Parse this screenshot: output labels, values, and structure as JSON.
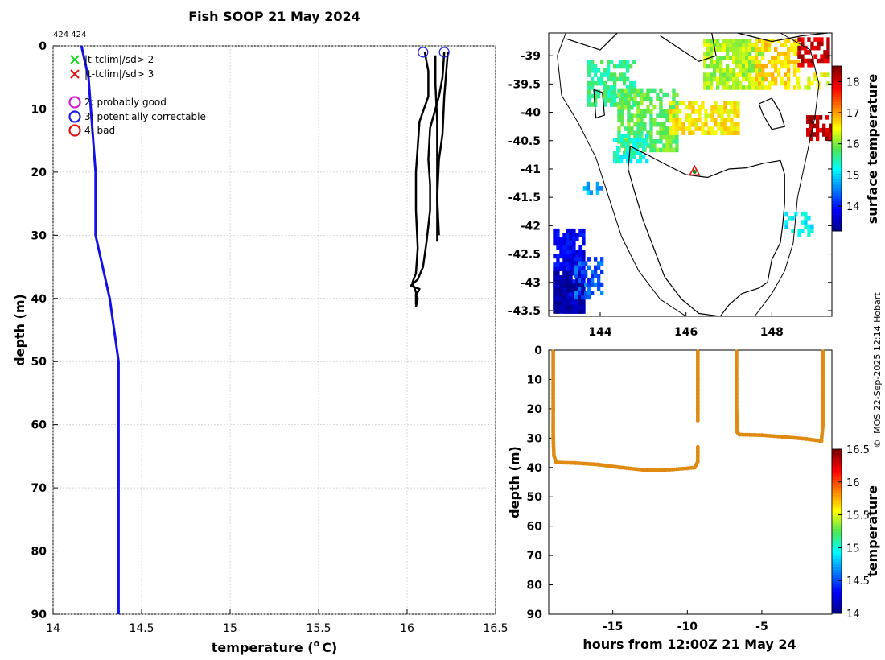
{
  "colors": {
    "climatology": "#1212e6",
    "profile": "#000000",
    "timeseries": "#e08a12",
    "qc_good_x": "#19d619",
    "qc_bad_x": "#e01212",
    "qc2": "#d21bd2",
    "qc3": "#1c1ce0",
    "qc4": "#e01212",
    "land": "#ffffff"
  },
  "side_label": "© IMOS 22-Sep-2025 12:14 Hobart",
  "chart_data": [
    {
      "id": "profile",
      "type": "line",
      "title": "Fish SOOP 21 May 2024",
      "id_label": "424 424",
      "xlabel": "temperature (",
      "xlabel_unit_sup": "o",
      "xlabel_unit": "C)",
      "ylabel": "depth (m)",
      "xlim": [
        14,
        16.5
      ],
      "ylim": [
        0,
        90
      ],
      "y_inverted": true,
      "xticks": [
        14,
        14.5,
        15,
        15.5,
        16,
        16.5
      ],
      "xtick_labels": [
        "14",
        "14.5",
        "15",
        "15.5",
        "16",
        "16.5"
      ],
      "yticks": [
        0,
        10,
        20,
        30,
        40,
        50,
        60,
        70,
        80,
        90
      ],
      "ytick_labels": [
        "0",
        "10",
        "20",
        "30",
        "40",
        "50",
        "60",
        "70",
        "80",
        "90"
      ],
      "grid": true,
      "legend": [
        {
          "marker": "x",
          "color": "qc_good_x",
          "label": "|t-tclim|/sd> 2"
        },
        {
          "marker": "x",
          "color": "qc_bad_x",
          "label": "|t-tclim|/sd> 3"
        },
        {
          "marker": "circle",
          "color": "qc2",
          "label": "2: probably good"
        },
        {
          "marker": "circle",
          "color": "qc3",
          "label": "3: potentially correctable"
        },
        {
          "marker": "circle",
          "color": "qc4",
          "label": "4: bad"
        }
      ],
      "series": [
        {
          "name": "climatology",
          "color": "climatology",
          "width": 3,
          "points": [
            [
              14.16,
              0
            ],
            [
              14.2,
              5
            ],
            [
              14.24,
              20
            ],
            [
              14.24,
              30
            ],
            [
              14.32,
              40
            ],
            [
              14.37,
              50
            ],
            [
              14.37,
              60
            ],
            [
              14.37,
              80
            ],
            [
              14.37,
              90
            ]
          ]
        },
        {
          "name": "profile A",
          "color": "profile",
          "width": 2.5,
          "points": [
            [
              16.1,
              1
            ],
            [
              16.12,
              4
            ],
            [
              16.12,
              8
            ],
            [
              16.07,
              12
            ],
            [
              16.06,
              16
            ],
            [
              16.05,
              20
            ],
            [
              16.05,
              26
            ],
            [
              16.06,
              32
            ],
            [
              16.05,
              36
            ],
            [
              16.03,
              37.5
            ],
            [
              16.05,
              39
            ],
            [
              16.05,
              41
            ]
          ]
        },
        {
          "name": "profile B",
          "color": "profile",
          "width": 2.5,
          "points": [
            [
              16.21,
              1
            ],
            [
              16.2,
              5
            ],
            [
              16.18,
              8
            ],
            [
              16.15,
              11
            ],
            [
              16.13,
              13
            ],
            [
              16.12,
              18
            ],
            [
              16.13,
              22
            ],
            [
              16.13,
              26
            ],
            [
              16.11,
              31
            ],
            [
              16.09,
              35
            ],
            [
              16.06,
              37
            ],
            [
              16.02,
              38
            ],
            [
              16.07,
              38.5
            ],
            [
              16.05,
              39.5
            ],
            [
              16.06,
              40
            ],
            [
              16.05,
              41.3
            ]
          ]
        },
        {
          "name": "profile C",
          "color": "profile",
          "width": 2.5,
          "points": [
            [
              16.16,
              1.5
            ],
            [
              16.16,
              6
            ],
            [
              16.17,
              12
            ],
            [
              16.17,
              20
            ],
            [
              16.17,
              28
            ],
            [
              16.17,
              31
            ]
          ]
        },
        {
          "name": "profile D",
          "color": "profile",
          "width": 2.5,
          "points": [
            [
              16.23,
              1
            ],
            [
              16.21,
              8
            ],
            [
              16.2,
              14
            ],
            [
              16.18,
              18
            ],
            [
              16.17,
              24
            ],
            [
              16.18,
              30
            ]
          ]
        }
      ],
      "markers": [
        {
          "marker": "circle",
          "color": "qc3",
          "x": 16.09,
          "y": 1
        },
        {
          "marker": "circle",
          "color": "qc3",
          "x": 16.21,
          "y": 1
        }
      ]
    },
    {
      "id": "map",
      "type": "heatmap",
      "xlim": [
        142.8,
        149.4
      ],
      "ylim": [
        -43.6,
        -38.6
      ],
      "xticks": [
        144,
        146,
        148
      ],
      "xtick_labels": [
        "144",
        "146",
        "148"
      ],
      "yticks": [
        -39,
        -39.5,
        -40,
        -40.5,
        -41,
        -41.5,
        -42,
        -42.5,
        -43,
        -43.5
      ],
      "ytick_labels": [
        "-39",
        "-39.5",
        "-40",
        "-40.5",
        "-41",
        "-41.5",
        "-42",
        "-42.5",
        "-43",
        "-43.5"
      ],
      "colorbar_label": "surface temperature",
      "colorbar_range": [
        13.2,
        18.5
      ],
      "colorbar_ticks": [
        14,
        15,
        16,
        17,
        18
      ],
      "colorbar_tick_labels": [
        "14",
        "15",
        "16",
        "17",
        "18"
      ],
      "station_marker": {
        "lon": 146.2,
        "lat": -41.05
      },
      "sst_patches": [
        {
          "lon": [
            143.7,
            144.8
          ],
          "lat": [
            -39.9,
            -39.1
          ],
          "value": 15.6,
          "density": 0.6
        },
        {
          "lon": [
            144.4,
            145.8
          ],
          "lat": [
            -40.7,
            -39.6
          ],
          "value": 15.9,
          "density": 0.7
        },
        {
          "lon": [
            145.6,
            147.2
          ],
          "lat": [
            -40.4,
            -39.8
          ],
          "value": 16.6,
          "density": 0.75
        },
        {
          "lon": [
            146.4,
            147.8
          ],
          "lat": [
            -39.6,
            -38.7
          ],
          "value": 16.2,
          "density": 0.8
        },
        {
          "lon": [
            147.6,
            148.6
          ],
          "lat": [
            -39.6,
            -38.7
          ],
          "value": 16.7,
          "density": 0.6
        },
        {
          "lon": [
            148.6,
            149.3
          ],
          "lat": [
            -39.2,
            -38.7
          ],
          "value": 18.1,
          "density": 0.6
        },
        {
          "lon": [
            148.8,
            149.4
          ],
          "lat": [
            -40.5,
            -40.1
          ],
          "value": 18.2,
          "density": 0.8
        },
        {
          "lon": [
            148.6,
            149.3
          ],
          "lat": [
            -39.6,
            -39.3
          ],
          "value": 16.5,
          "density": 0.5
        },
        {
          "lon": [
            144.3,
            145.1
          ],
          "lat": [
            -40.9,
            -40.4
          ],
          "value": 15.3,
          "density": 0.6
        },
        {
          "lon": [
            142.9,
            143.6
          ],
          "lat": [
            -43.55,
            -42.05
          ],
          "value": 13.8,
          "density": 0.85
        },
        {
          "lon": [
            142.9,
            143.6
          ],
          "lat": [
            -43.55,
            -42.8
          ],
          "value": 13.3,
          "density": 0.9
        },
        {
          "lon": [
            143.4,
            144.0
          ],
          "lat": [
            -43.3,
            -42.6
          ],
          "value": 14.3,
          "density": 0.5
        },
        {
          "lon": [
            143.6,
            144.0
          ],
          "lat": [
            -41.45,
            -41.25
          ],
          "value": 14.8,
          "density": 0.5
        },
        {
          "lon": [
            148.3,
            148.9
          ],
          "lat": [
            -42.2,
            -41.8
          ],
          "value": 15.2,
          "density": 0.4
        }
      ],
      "coastlines": [
        [
          [
            146.6,
            -38.6
          ],
          [
            146.7,
            -39.0
          ],
          [
            146.3,
            -39.1
          ],
          [
            145.9,
            -38.9
          ],
          [
            145.4,
            -38.65
          ]
        ],
        [
          [
            144.4,
            -38.6
          ],
          [
            144.0,
            -38.9
          ],
          [
            143.6,
            -38.8
          ],
          [
            143.2,
            -38.7
          ]
        ],
        [
          [
            147.2,
            -38.6
          ],
          [
            148.0,
            -38.75
          ],
          [
            148.7,
            -38.65
          ],
          [
            149.3,
            -38.6
          ]
        ],
        [
          [
            144.7,
            -40.6
          ],
          [
            145.1,
            -40.75
          ],
          [
            145.6,
            -40.95
          ],
          [
            146.0,
            -41.1
          ],
          [
            146.5,
            -41.15
          ],
          [
            147.0,
            -41.0
          ],
          [
            147.4,
            -40.98
          ],
          [
            147.8,
            -40.9
          ],
          [
            148.2,
            -40.85
          ],
          [
            148.3,
            -41.1
          ],
          [
            148.3,
            -41.6
          ],
          [
            148.25,
            -42.0
          ],
          [
            148.2,
            -42.3
          ],
          [
            148.0,
            -42.6
          ],
          [
            147.9,
            -43.0
          ],
          [
            147.7,
            -43.1
          ],
          [
            147.3,
            -43.2
          ],
          [
            147.0,
            -43.4
          ],
          [
            146.8,
            -43.6
          ],
          [
            146.3,
            -43.55
          ],
          [
            145.9,
            -43.3
          ],
          [
            145.5,
            -42.9
          ],
          [
            145.2,
            -42.3
          ],
          [
            145.0,
            -41.9
          ],
          [
            144.8,
            -41.4
          ],
          [
            144.65,
            -41.0
          ],
          [
            144.7,
            -40.6
          ]
        ],
        [
          [
            147.7,
            -39.85
          ],
          [
            148.0,
            -39.75
          ],
          [
            148.2,
            -40.0
          ],
          [
            148.3,
            -40.25
          ],
          [
            148.0,
            -40.3
          ],
          [
            147.8,
            -40.05
          ],
          [
            147.7,
            -39.85
          ]
        ],
        [
          [
            143.85,
            -39.6
          ],
          [
            144.05,
            -39.65
          ],
          [
            144.1,
            -40.05
          ],
          [
            143.9,
            -40.1
          ],
          [
            143.85,
            -39.6
          ]
        ]
      ],
      "shelf_contour": [
        [
          [
            143.2,
            -38.6
          ],
          [
            143.0,
            -39.0
          ],
          [
            143.1,
            -39.7
          ],
          [
            143.5,
            -40.2
          ],
          [
            143.9,
            -40.8
          ],
          [
            144.2,
            -41.5
          ],
          [
            144.5,
            -42.2
          ],
          [
            144.9,
            -42.8
          ],
          [
            145.4,
            -43.3
          ],
          [
            146.0,
            -43.6
          ]
        ],
        [
          [
            148.2,
            -38.6
          ],
          [
            148.9,
            -38.9
          ],
          [
            149.1,
            -39.5
          ],
          [
            149.0,
            -40.1
          ],
          [
            148.8,
            -40.8
          ],
          [
            148.6,
            -41.5
          ],
          [
            148.5,
            -42.3
          ],
          [
            148.3,
            -42.8
          ],
          [
            148.0,
            -43.2
          ],
          [
            147.6,
            -43.6
          ]
        ]
      ]
    },
    {
      "id": "timeseries",
      "type": "scatter",
      "xlabel": "hours from 12:00Z 21 May 24",
      "ylabel": "depth (m)",
      "xlim": [
        -19.3,
        -0.3
      ],
      "ylim": [
        0,
        90
      ],
      "y_inverted": true,
      "xticks": [
        -15,
        -10,
        -5
      ],
      "xtick_labels": [
        "-15",
        "-10",
        "-5"
      ],
      "yticks": [
        0,
        10,
        20,
        30,
        40,
        50,
        60,
        70,
        80,
        90
      ],
      "ytick_labels": [
        "0",
        "10",
        "20",
        "30",
        "40",
        "50",
        "60",
        "70",
        "80",
        "90"
      ],
      "colorbar_label": "temperature",
      "colorbar_range": [
        14,
        16.5
      ],
      "colorbar_ticks": [
        14,
        14.5,
        15,
        15.5,
        16,
        16.5
      ],
      "colorbar_tick_labels": [
        "14",
        "14.5",
        "15",
        "15.5",
        "16",
        "16.5"
      ],
      "marker_color": "timeseries",
      "tracks": [
        [
          [
            -19.0,
            0.5
          ],
          [
            -19.0,
            10
          ],
          [
            -19.0,
            20
          ],
          [
            -19.0,
            30
          ],
          [
            -18.95,
            36
          ],
          [
            -18.8,
            38.3
          ],
          [
            -17.5,
            38.5
          ],
          [
            -16.0,
            39.0
          ],
          [
            -14.5,
            40.0
          ],
          [
            -13.0,
            40.8
          ],
          [
            -12.0,
            41.0
          ],
          [
            -11.0,
            40.7
          ],
          [
            -10.0,
            40.3
          ],
          [
            -9.5,
            40.0
          ],
          [
            -9.3,
            38.0
          ],
          [
            -9.3,
            33.0
          ]
        ],
        [
          [
            -9.3,
            0.5
          ],
          [
            -9.3,
            10
          ],
          [
            -9.3,
            20
          ],
          [
            -9.3,
            24.0
          ]
        ],
        [
          [
            -6.7,
            0.5
          ],
          [
            -6.7,
            10
          ],
          [
            -6.7,
            20
          ],
          [
            -6.65,
            28.0
          ],
          [
            -6.5,
            28.8
          ],
          [
            -5.0,
            29.0
          ],
          [
            -3.5,
            29.6
          ],
          [
            -2.0,
            30.3
          ],
          [
            -1.0,
            31.0
          ],
          [
            -0.9,
            25
          ],
          [
            -0.9,
            15
          ],
          [
            -0.9,
            5
          ],
          [
            -0.9,
            0.5
          ]
        ]
      ]
    }
  ]
}
